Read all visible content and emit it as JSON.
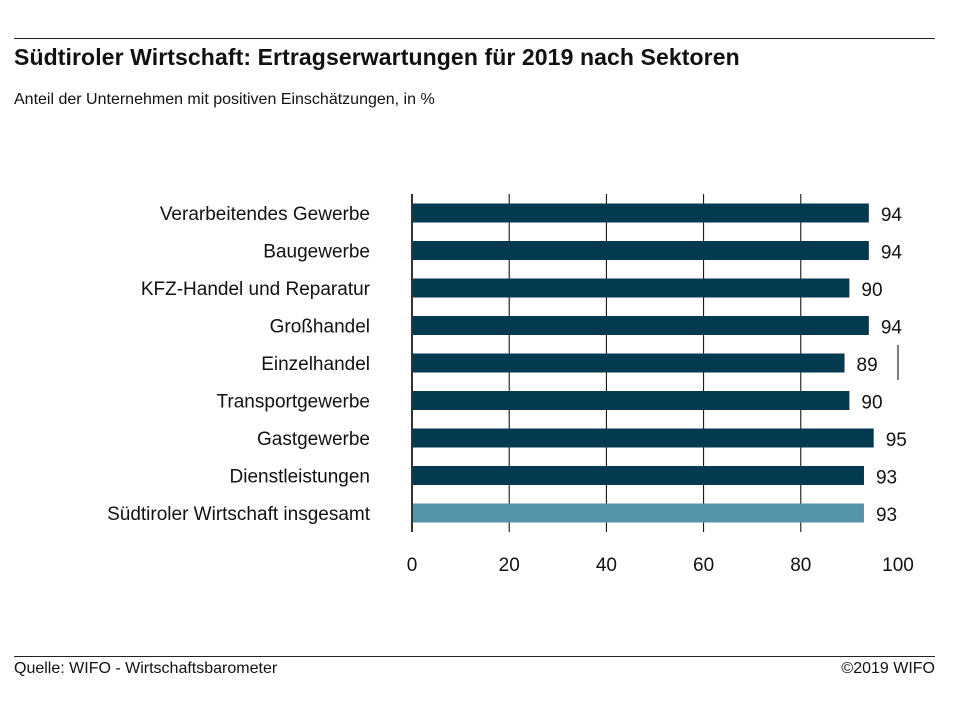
{
  "header": {
    "title": "Südtiroler Wirtschaft: Ertragserwartungen für 2019 nach Sektoren",
    "subtitle": "Anteil der Unternehmen mit positiven Einschätzungen, in %"
  },
  "footer": {
    "source": "Quelle: WIFO - Wirtschaftsbarometer",
    "copyright": "©2019 WIFO"
  },
  "colors": {
    "sector_bar": "#033A50",
    "total_bar": "#5593A8",
    "gridline": "#000000"
  },
  "chart_data": {
    "type": "bar",
    "orientation": "horizontal",
    "title": "Südtiroler Wirtschaft: Ertragserwartungen für 2019 nach Sektoren",
    "subtitle": "Anteil der Unternehmen mit positiven Einschätzungen, in %",
    "xlabel": "",
    "ylabel": "",
    "xlim": [
      0,
      100
    ],
    "xticks": [
      0,
      20,
      40,
      60,
      80,
      100
    ],
    "grid": true,
    "categories": [
      "Verarbeitendes Gewerbe",
      "Baugewerbe",
      "KFZ-Handel und Reparatur",
      "Großhandel",
      "Einzelhandel",
      "Transportgewerbe",
      "Gastgewerbe",
      "Dienstleistungen",
      "Südtiroler Wirtschaft insgesamt"
    ],
    "values": [
      94,
      94,
      90,
      94,
      89,
      90,
      95,
      93,
      93
    ],
    "highlight": [
      false,
      false,
      false,
      false,
      false,
      false,
      false,
      false,
      true
    ],
    "data_labels": true
  }
}
